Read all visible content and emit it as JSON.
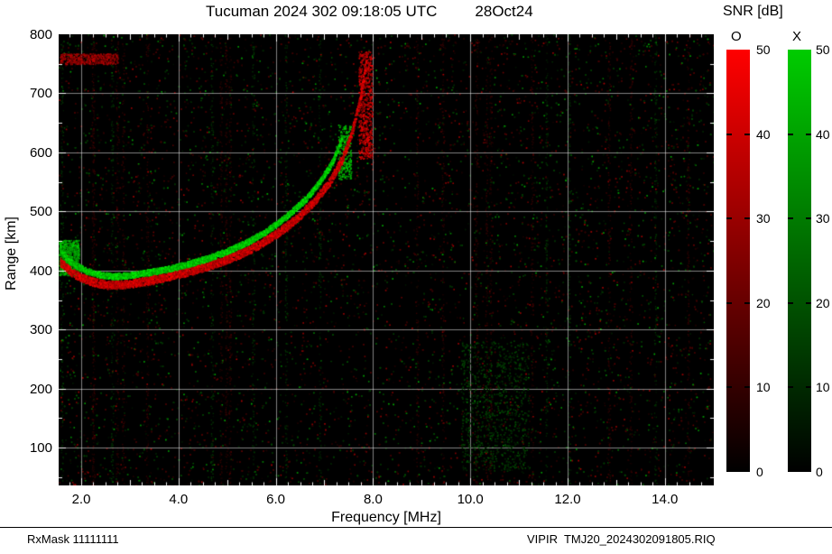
{
  "header": {
    "title": "Tucuman 2024 302 09:18:05 UTC",
    "date": "28Oct24"
  },
  "axes": {
    "x_label": "Frequency [MHz]",
    "y_label": "Range [km]",
    "x_tick_labels": [
      "2.0",
      "4.0",
      "6.0",
      "8.0",
      "10.0",
      "12.0",
      "14.0"
    ],
    "x_tick_values": [
      2,
      4,
      6,
      8,
      10,
      12,
      14
    ],
    "y_tick_labels": [
      "100",
      "200",
      "300",
      "400",
      "500",
      "600",
      "700",
      "800"
    ],
    "y_tick_values": [
      100,
      200,
      300,
      400,
      500,
      600,
      700,
      800
    ]
  },
  "colorbar": {
    "title": "SNR [dB]",
    "o_label": "O",
    "x_label": "X",
    "tick_labels": [
      "0",
      "10",
      "20",
      "30",
      "40",
      "50"
    ],
    "tick_values": [
      0,
      10,
      20,
      30,
      40,
      50
    ],
    "dash_values": [
      10,
      20,
      30,
      40
    ],
    "o_top_color": "#ff0000",
    "x_top_color": "#00cc00",
    "bottom_color": "#000000"
  },
  "footer": {
    "left": "RxMask 11111111",
    "right": "VIPIR  TMJ20_2024302091805.RIQ"
  },
  "chart_data": {
    "type": "heatmap",
    "title": "Tucuman 2024 302 09:18:05 UTC 28Oct24",
    "xlabel": "Frequency [MHz]",
    "ylabel": "Range [km]",
    "xlim": [
      1.536,
      15.006
    ],
    "ylim": [
      36,
      800
    ],
    "background": "#000000",
    "legend": {
      "O": "red O-mode SNR 0-50 dB",
      "X": "green X-mode SNR 0-50 dB"
    },
    "grid": {
      "x_values": [
        2,
        4,
        6,
        8,
        10,
        12,
        14
      ],
      "y_values": [
        100,
        200,
        300,
        400,
        500,
        600,
        700
      ],
      "color": "rgba(255,255,255,0.5)"
    },
    "series": [
      {
        "name": "O-mode trace",
        "mode": "O",
        "color": "#ff0000",
        "thickness_km": 14,
        "points": [
          [
            1.55,
            415
          ],
          [
            1.8,
            397
          ],
          [
            2.0,
            388
          ],
          [
            2.2,
            382
          ],
          [
            2.5,
            377
          ],
          [
            2.8,
            377
          ],
          [
            3.0,
            379
          ],
          [
            3.3,
            383
          ],
          [
            3.6,
            388
          ],
          [
            4.0,
            395
          ],
          [
            4.4,
            404
          ],
          [
            4.8,
            414
          ],
          [
            5.2,
            427
          ],
          [
            5.6,
            443
          ],
          [
            6.0,
            463
          ],
          [
            6.4,
            488
          ],
          [
            6.8,
            520
          ],
          [
            7.1,
            552
          ],
          [
            7.35,
            590
          ],
          [
            7.55,
            635
          ],
          [
            7.7,
            685
          ],
          [
            7.8,
            730
          ],
          [
            7.85,
            762
          ]
        ]
      },
      {
        "name": "X-mode trace",
        "mode": "X",
        "color": "#00dd00",
        "thickness_km": 10,
        "points": [
          [
            1.55,
            440
          ],
          [
            1.7,
            420
          ],
          [
            1.9,
            408
          ],
          [
            2.1,
            400
          ],
          [
            2.4,
            393
          ],
          [
            2.7,
            391
          ],
          [
            3.0,
            393
          ],
          [
            3.4,
            398
          ],
          [
            3.8,
            404
          ],
          [
            4.2,
            412
          ],
          [
            4.6,
            422
          ],
          [
            5.0,
            434
          ],
          [
            5.4,
            449
          ],
          [
            5.8,
            468
          ],
          [
            6.2,
            492
          ],
          [
            6.6,
            522
          ],
          [
            6.9,
            552
          ],
          [
            7.1,
            578
          ],
          [
            7.25,
            605
          ],
          [
            7.35,
            628
          ]
        ]
      }
    ],
    "clusters": [
      {
        "desc": "X-mode spread at lowest frequencies",
        "color": "green",
        "f": [
          1.54,
          1.95
        ],
        "range": [
          392,
          452
        ],
        "count": 700,
        "brightness": [
          100,
          220
        ]
      },
      {
        "desc": "red streak top-left near 760 km",
        "color": "red",
        "f": [
          1.55,
          2.75
        ],
        "range": [
          750,
          768
        ],
        "count": 450,
        "brightness": [
          90,
          210
        ]
      },
      {
        "desc": "O-mode asymptote spread",
        "color": "red",
        "f": [
          7.7,
          7.98
        ],
        "range": [
          590,
          772
        ],
        "count": 600,
        "brightness": [
          120,
          255
        ]
      },
      {
        "desc": "X-mode asymptote dashes",
        "color": "green",
        "f": [
          7.28,
          7.54
        ],
        "range": [
          555,
          648
        ],
        "count": 260,
        "brightness": [
          120,
          230
        ]
      },
      {
        "desc": "diffuse green noise patch",
        "color": "green",
        "f": [
          9.8,
          11.2
        ],
        "range": [
          60,
          280
        ],
        "count": 900,
        "brightness": [
          25,
          85
        ]
      }
    ],
    "noise": {
      "dim_count": 30000,
      "bright_count": 1600,
      "red_fraction": 0.55,
      "rfi_columns": 26
    }
  }
}
